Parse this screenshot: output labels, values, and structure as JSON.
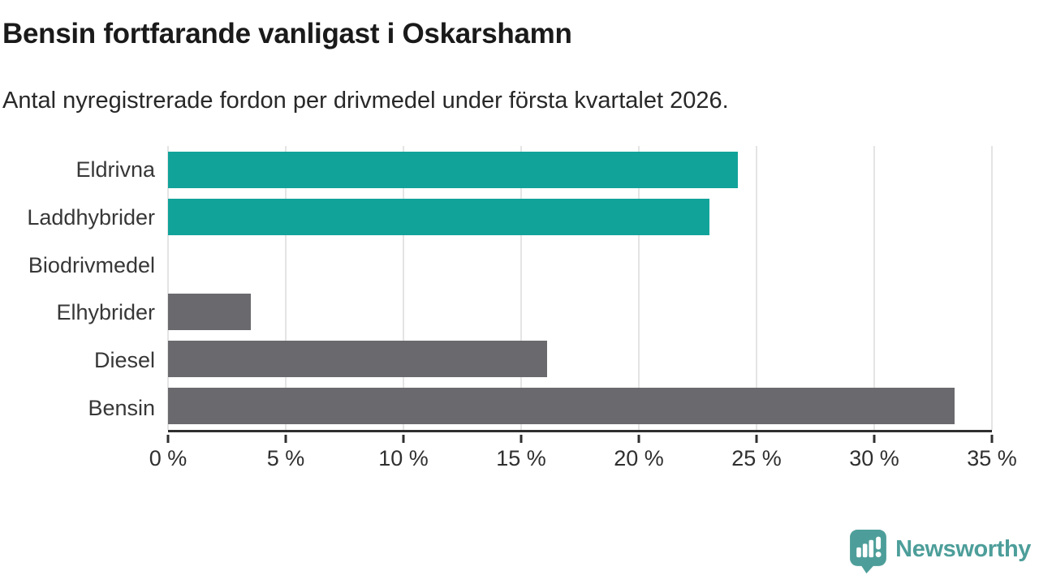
{
  "header": {
    "title": "Bensin fortfarande vanligast i Oskarshamn",
    "subtitle": "Antal nyregistrerade fordon per drivmedel under första kvartalet 2026."
  },
  "chart_data": {
    "type": "bar",
    "orientation": "horizontal",
    "title": "Bensin fortfarande vanligast i Oskarshamn",
    "subtitle": "Antal nyregistrerade fordon per drivmedel under första kvartalet 2026.",
    "categories": [
      "Eldrivna",
      "Laddhybrider",
      "Biodrivmedel",
      "Elhybrider",
      "Diesel",
      "Bensin"
    ],
    "values": [
      24.2,
      23.0,
      0.0,
      3.5,
      16.1,
      33.4
    ],
    "unit": "%",
    "bar_colors": [
      "#11a39a",
      "#11a39a",
      "#6a6a6e",
      "#6a6a6e",
      "#6a6a6e",
      "#6a6a6e"
    ],
    "xlim": [
      0,
      35
    ],
    "x_tick_values": [
      0,
      5,
      10,
      15,
      20,
      25,
      30,
      35
    ],
    "x_tick_labels": [
      "0 %",
      "5 %",
      "10 %",
      "15 %",
      "20 %",
      "25 %",
      "30 %",
      "35 %"
    ],
    "grid": true,
    "legend": "none"
  },
  "branding": {
    "logo_text": "Newsworthy",
    "logo_icon": "bar-chart-speech-bubble-icon",
    "logo_color": "#4d9e9a"
  },
  "colors": {
    "highlight_bar": "#11a39a",
    "default_bar": "#6a6a6e",
    "gridline": "#e4e4e4",
    "axis": "#2f2f2f",
    "title_text": "#1a1a1a",
    "body_text": "#282828"
  }
}
